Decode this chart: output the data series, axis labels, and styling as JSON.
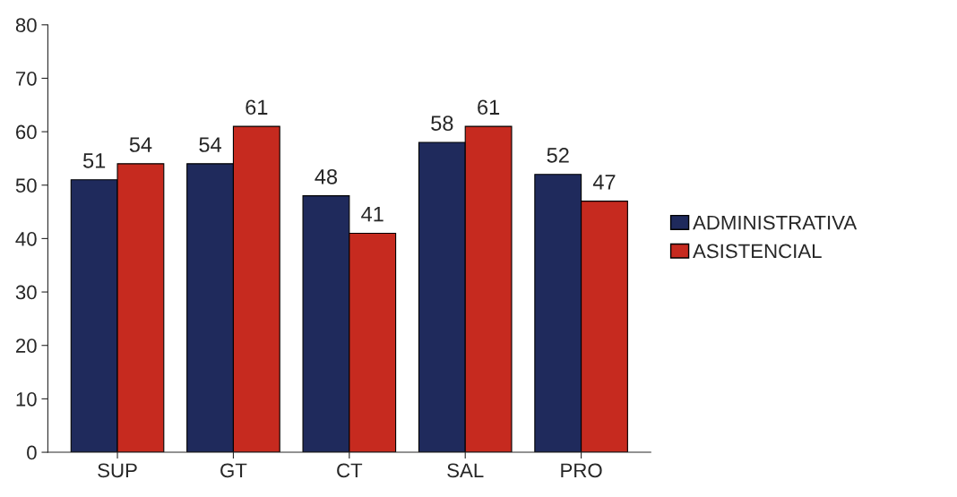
{
  "chart_data": {
    "type": "bar",
    "categories": [
      "SUP",
      "GT",
      "CT",
      "SAL",
      "PRO"
    ],
    "series": [
      {
        "name": "ADMINISTRATIVA",
        "color": "#1f2a5c",
        "values": [
          51,
          54,
          48,
          58,
          52
        ]
      },
      {
        "name": "ASISTENCIAL",
        "color": "#c62a1f",
        "values": [
          54,
          61,
          41,
          61,
          47
        ]
      }
    ],
    "ylim": [
      0,
      80
    ],
    "yticks": [
      0,
      10,
      20,
      30,
      40,
      50,
      60,
      70,
      80
    ],
    "data_labels": true,
    "legend": "right",
    "grid": false
  }
}
